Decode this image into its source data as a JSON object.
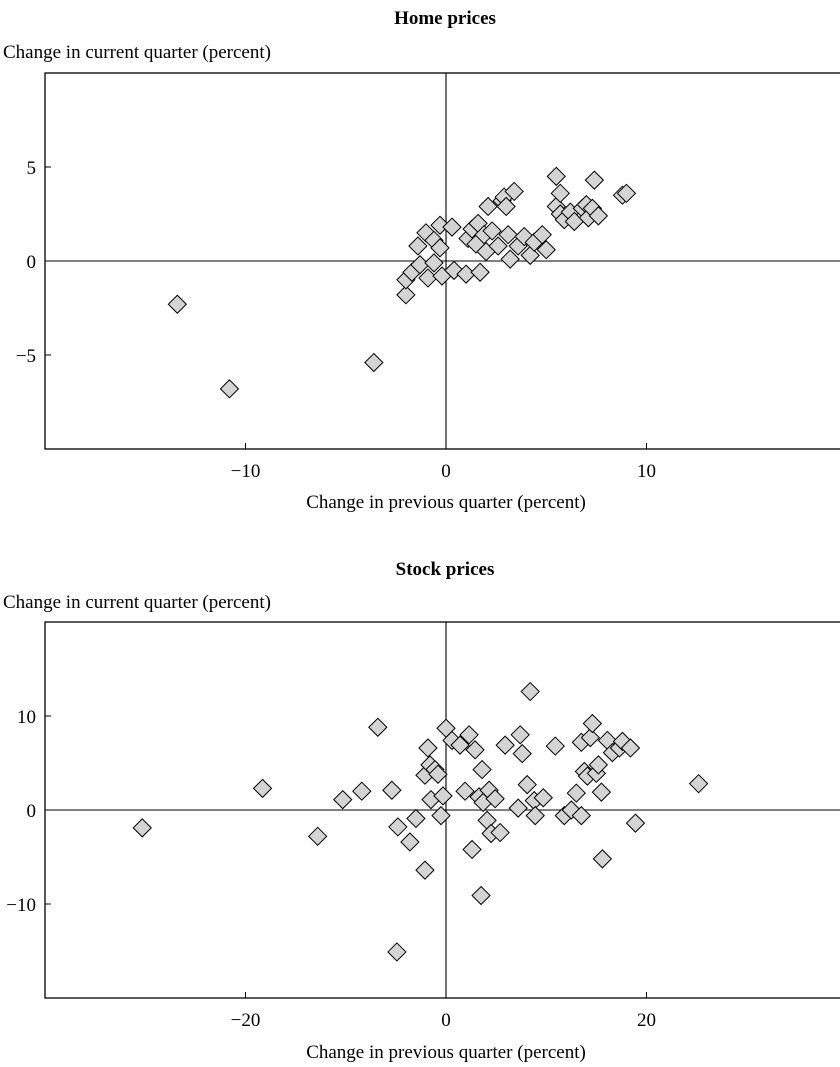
{
  "chart_data": [
    {
      "type": "scatter",
      "title": "Home prices",
      "ylabel": "Change in current quarter (percent)",
      "xlabel": "Change in previous quarter (percent)",
      "xlim": [
        -20,
        20
      ],
      "ylim": [
        -10,
        10
      ],
      "xticks": [
        -10,
        0,
        10
      ],
      "yticks": [
        5,
        0,
        -5
      ],
      "tick_labels_x": [
        "−10",
        "0",
        "10"
      ],
      "tick_labels_y": [
        "5",
        "0",
        "−5"
      ],
      "zero_lines": true,
      "grid": false,
      "marker": "diamond",
      "points": [
        [
          -13.4,
          -2.3
        ],
        [
          -10.8,
          -6.8
        ],
        [
          -3.6,
          -5.4
        ],
        [
          -2.0,
          -1.8
        ],
        [
          -2.0,
          -1.0
        ],
        [
          -1.7,
          -0.6
        ],
        [
          -1.3,
          -0.2
        ],
        [
          -1.4,
          0.8
        ],
        [
          -1.0,
          1.5
        ],
        [
          -0.9,
          -0.9
        ],
        [
          -0.6,
          1.1
        ],
        [
          -0.6,
          -0.1
        ],
        [
          -0.3,
          1.9
        ],
        [
          -0.3,
          0.7
        ],
        [
          -0.2,
          -0.8
        ],
        [
          0.3,
          1.8
        ],
        [
          0.4,
          -0.5
        ],
        [
          1.0,
          -0.7
        ],
        [
          1.1,
          1.2
        ],
        [
          1.3,
          1.7
        ],
        [
          1.5,
          0.9
        ],
        [
          1.6,
          2.0
        ],
        [
          1.7,
          -0.6
        ],
        [
          1.9,
          1.4
        ],
        [
          2.0,
          0.5
        ],
        [
          2.1,
          2.9
        ],
        [
          2.3,
          1.6
        ],
        [
          2.6,
          0.8
        ],
        [
          2.8,
          3.2
        ],
        [
          2.9,
          3.4
        ],
        [
          3.0,
          2.9
        ],
        [
          3.1,
          1.4
        ],
        [
          3.2,
          0.1
        ],
        [
          3.4,
          3.7
        ],
        [
          3.6,
          0.8
        ],
        [
          3.9,
          1.3
        ],
        [
          4.2,
          0.3
        ],
        [
          4.4,
          1.0
        ],
        [
          4.8,
          1.4
        ],
        [
          5.0,
          0.6
        ],
        [
          5.5,
          4.5
        ],
        [
          5.5,
          2.9
        ],
        [
          5.7,
          3.6
        ],
        [
          5.7,
          2.5
        ],
        [
          5.9,
          2.2
        ],
        [
          6.2,
          2.6
        ],
        [
          6.4,
          2.1
        ],
        [
          6.8,
          2.8
        ],
        [
          7.0,
          3.0
        ],
        [
          7.1,
          2.3
        ],
        [
          7.3,
          2.8
        ],
        [
          7.4,
          4.3
        ],
        [
          7.6,
          2.4
        ],
        [
          8.8,
          3.5
        ],
        [
          9.0,
          3.6
        ]
      ]
    },
    {
      "type": "scatter",
      "title": "Stock prices",
      "ylabel": "Change in current quarter (percent)",
      "xlabel": "Change in previous quarter (percent)",
      "xlim": [
        -40,
        40
      ],
      "ylim": [
        -20,
        20
      ],
      "xticks": [
        -20,
        0,
        20
      ],
      "yticks": [
        10,
        0,
        -10
      ],
      "tick_labels_x": [
        "−20",
        "0",
        "20"
      ],
      "tick_labels_y": [
        "10",
        "0",
        "−10"
      ],
      "zero_lines": true,
      "grid": false,
      "marker": "diamond",
      "points": [
        [
          -30.3,
          -1.9
        ],
        [
          -18.3,
          2.3
        ],
        [
          -12.8,
          -2.8
        ],
        [
          -10.3,
          1.1
        ],
        [
          -8.4,
          2.0
        ],
        [
          -6.8,
          8.8
        ],
        [
          -5.4,
          2.1
        ],
        [
          -4.9,
          -15.1
        ],
        [
          -4.8,
          -1.8
        ],
        [
          -3.6,
          -3.4
        ],
        [
          -3.0,
          -0.9
        ],
        [
          -2.1,
          -6.4
        ],
        [
          -2.1,
          3.7
        ],
        [
          -1.8,
          6.6
        ],
        [
          -1.6,
          4.8
        ],
        [
          -1.5,
          1.1
        ],
        [
          -1.1,
          4.3
        ],
        [
          -0.8,
          3.8
        ],
        [
          -0.5,
          -0.6
        ],
        [
          -0.3,
          1.5
        ],
        [
          0.0,
          8.7
        ],
        [
          0.6,
          7.4
        ],
        [
          1.4,
          6.9
        ],
        [
          1.9,
          2.0
        ],
        [
          2.3,
          8.0
        ],
        [
          2.6,
          -4.2
        ],
        [
          2.9,
          6.4
        ],
        [
          3.3,
          1.4
        ],
        [
          3.5,
          -9.1
        ],
        [
          3.6,
          4.3
        ],
        [
          3.7,
          0.8
        ],
        [
          4.1,
          -1.1
        ],
        [
          4.3,
          2.1
        ],
        [
          4.5,
          -2.5
        ],
        [
          4.9,
          1.2
        ],
        [
          5.4,
          -2.4
        ],
        [
          5.9,
          6.9
        ],
        [
          7.2,
          0.2
        ],
        [
          7.4,
          8.0
        ],
        [
          7.6,
          6.0
        ],
        [
          8.1,
          2.7
        ],
        [
          8.4,
          12.6
        ],
        [
          8.8,
          1.0
        ],
        [
          8.9,
          -0.6
        ],
        [
          9.7,
          1.3
        ],
        [
          10.9,
          6.8
        ],
        [
          11.8,
          -0.6
        ],
        [
          12.5,
          0.0
        ],
        [
          13.0,
          1.8
        ],
        [
          13.5,
          -0.6
        ],
        [
          13.5,
          7.2
        ],
        [
          13.8,
          4.1
        ],
        [
          14.1,
          3.6
        ],
        [
          14.4,
          7.7
        ],
        [
          14.6,
          9.2
        ],
        [
          15.0,
          3.9
        ],
        [
          15.2,
          4.8
        ],
        [
          15.5,
          1.9
        ],
        [
          15.6,
          -5.2
        ],
        [
          16.1,
          7.4
        ],
        [
          16.6,
          6.1
        ],
        [
          17.3,
          6.6
        ],
        [
          17.6,
          7.3
        ],
        [
          18.4,
          6.6
        ],
        [
          18.9,
          -1.4
        ],
        [
          25.2,
          2.8
        ]
      ]
    }
  ]
}
